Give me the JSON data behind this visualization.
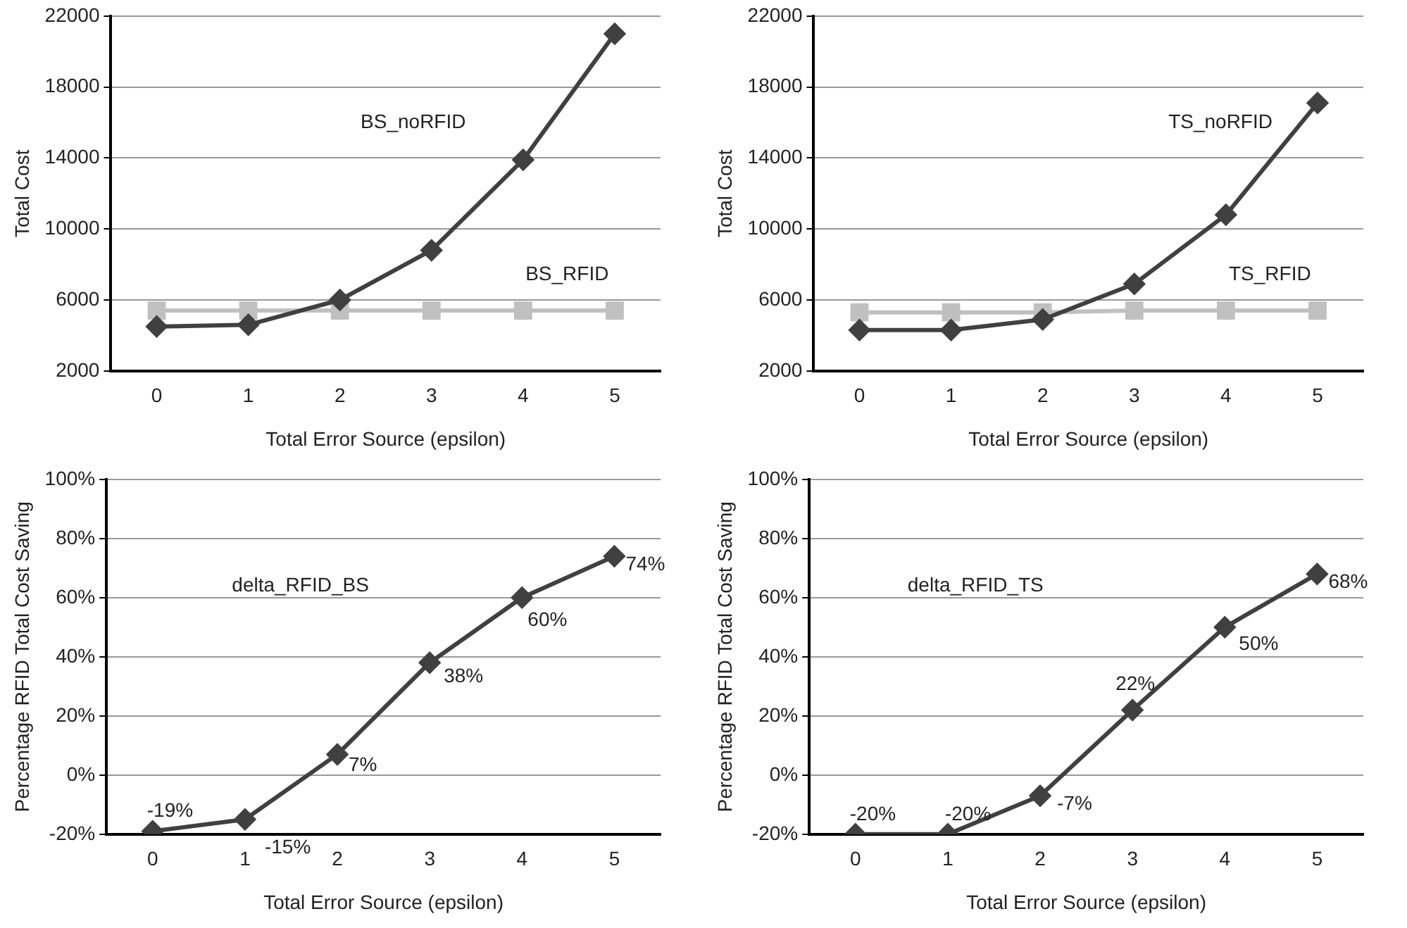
{
  "chart_data": [
    {
      "type": "line",
      "xlabel": "Total Error Source (epsilon)",
      "ylabel": "Total Cost",
      "categories": [
        "0",
        "1",
        "2",
        "3",
        "4",
        "5"
      ],
      "ylim": [
        2000,
        22000
      ],
      "yticks": [
        2000,
        6000,
        10000,
        14000,
        18000,
        22000
      ],
      "grid": "y",
      "legend": false,
      "series": [
        {
          "name": "BS_noRFID",
          "color": "#404040",
          "marker": "diamond",
          "values": [
            4500,
            4600,
            6000,
            8800,
            13900,
            21000
          ]
        },
        {
          "name": "BS_RFID",
          "color": "#c0c0c0",
          "marker": "square",
          "values": [
            5400,
            5400,
            5400,
            5400,
            5400,
            5400
          ]
        }
      ]
    },
    {
      "type": "line",
      "xlabel": "Total Error Source (epsilon)",
      "ylabel": "Total Cost",
      "categories": [
        "0",
        "1",
        "2",
        "3",
        "4",
        "5"
      ],
      "ylim": [
        2000,
        22000
      ],
      "yticks": [
        2000,
        6000,
        10000,
        14000,
        18000,
        22000
      ],
      "grid": "y",
      "legend": false,
      "series": [
        {
          "name": "TS_noRFID",
          "color": "#404040",
          "marker": "diamond",
          "values": [
            4300,
            4300,
            4900,
            6900,
            10800,
            17100
          ]
        },
        {
          "name": "TS_RFID",
          "color": "#c0c0c0",
          "marker": "square",
          "values": [
            5300,
            5300,
            5300,
            5400,
            5400,
            5400
          ]
        }
      ]
    },
    {
      "type": "line",
      "xlabel": "Total Error Source (epsilon)",
      "ylabel": "Percentage RFID Total Cost Saving",
      "categories": [
        "0",
        "1",
        "2",
        "3",
        "4",
        "5"
      ],
      "ylim": [
        -20,
        100
      ],
      "yticks": [
        {
          "value": -20,
          "label": "-20%"
        },
        {
          "value": 0,
          "label": "0%"
        },
        {
          "value": 20,
          "label": "20%"
        },
        {
          "value": 40,
          "label": "40%"
        },
        {
          "value": 60,
          "label": "60%"
        },
        {
          "value": 80,
          "label": "80%"
        },
        {
          "value": 100,
          "label": "100%"
        }
      ],
      "grid": "y",
      "legend": false,
      "series": [
        {
          "name": "delta_RFID_BS",
          "color": "#404040",
          "marker": "diamond",
          "values": [
            -19,
            -15,
            7,
            38,
            60,
            74
          ],
          "value_labels": [
            "-19%",
            "-15%",
            "7%",
            "38%",
            "60%",
            "74%"
          ]
        }
      ]
    },
    {
      "type": "line",
      "xlabel": "Total Error Source (epsilon)",
      "ylabel": "Percentage RFID Total Cost Saving",
      "categories": [
        "0",
        "1",
        "2",
        "3",
        "4",
        "5"
      ],
      "ylim": [
        -20,
        100
      ],
      "yticks": [
        {
          "value": -20,
          "label": "-20%"
        },
        {
          "value": 0,
          "label": "0%"
        },
        {
          "value": 20,
          "label": "20%"
        },
        {
          "value": 40,
          "label": "40%"
        },
        {
          "value": 60,
          "label": "60%"
        },
        {
          "value": 80,
          "label": "80%"
        },
        {
          "value": 100,
          "label": "100%"
        }
      ],
      "grid": "y",
      "legend": false,
      "series": [
        {
          "name": "delta_RFID_TS",
          "color": "#404040",
          "marker": "diamond",
          "values": [
            -20,
            -20,
            -7,
            22,
            50,
            68
          ],
          "value_labels": [
            "-20%",
            "-20%",
            "-7%",
            "22%",
            "50%",
            "68%"
          ]
        }
      ]
    }
  ]
}
